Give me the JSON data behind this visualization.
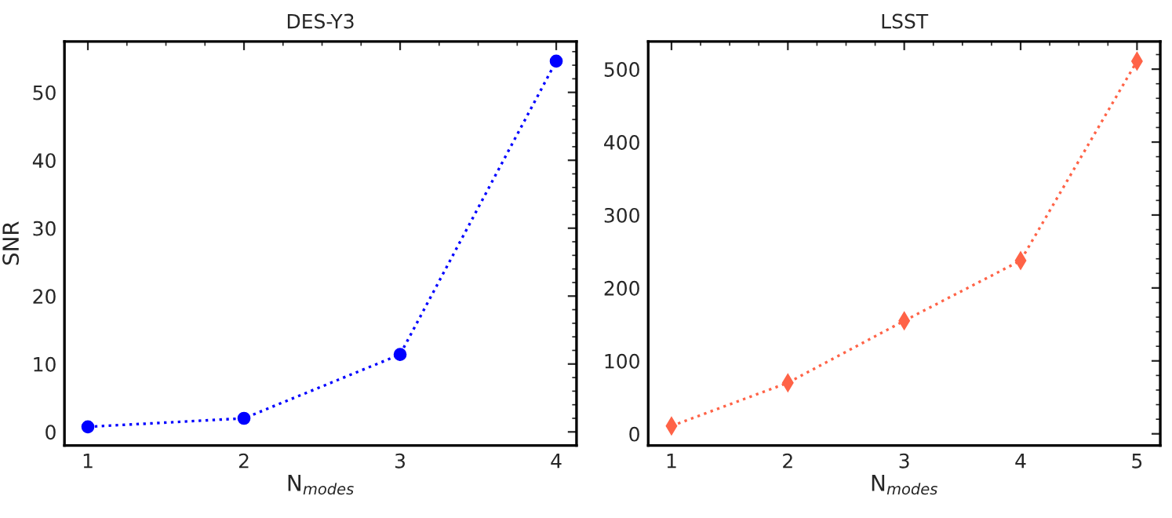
{
  "chart_data": [
    {
      "type": "line",
      "title": "DES-Y3",
      "xlabel": "N$_{modes}$",
      "ylabel": "SNR",
      "x": [
        1,
        2,
        3,
        4
      ],
      "xlim": [
        0.85,
        4.13
      ],
      "xticks": [
        1,
        2,
        3,
        4
      ],
      "ylim": [
        -2,
        57.5
      ],
      "yticks": [
        0,
        10,
        20,
        30,
        40,
        50
      ],
      "marker": "circle",
      "line_style": "dotted",
      "grid": false,
      "legend": false,
      "series": [
        {
          "color": "#0000ff",
          "values": [
            0.75,
            2.0,
            11.4,
            54.6
          ]
        }
      ]
    },
    {
      "type": "line",
      "title": "LSST",
      "xlabel": "N$_{modes}$",
      "x": [
        1,
        2,
        3,
        4,
        5
      ],
      "xlim": [
        0.8,
        5.2
      ],
      "xticks": [
        1,
        2,
        3,
        4,
        5
      ],
      "ylim": [
        -16,
        538
      ],
      "yticks": [
        0,
        100,
        200,
        300,
        400,
        500
      ],
      "marker": "diamond",
      "line_style": "dotted",
      "grid": false,
      "legend": false,
      "series": [
        {
          "color": "#ff6347",
          "values": [
            10.7,
            70,
            155,
            237.5,
            511
          ]
        }
      ]
    }
  ]
}
